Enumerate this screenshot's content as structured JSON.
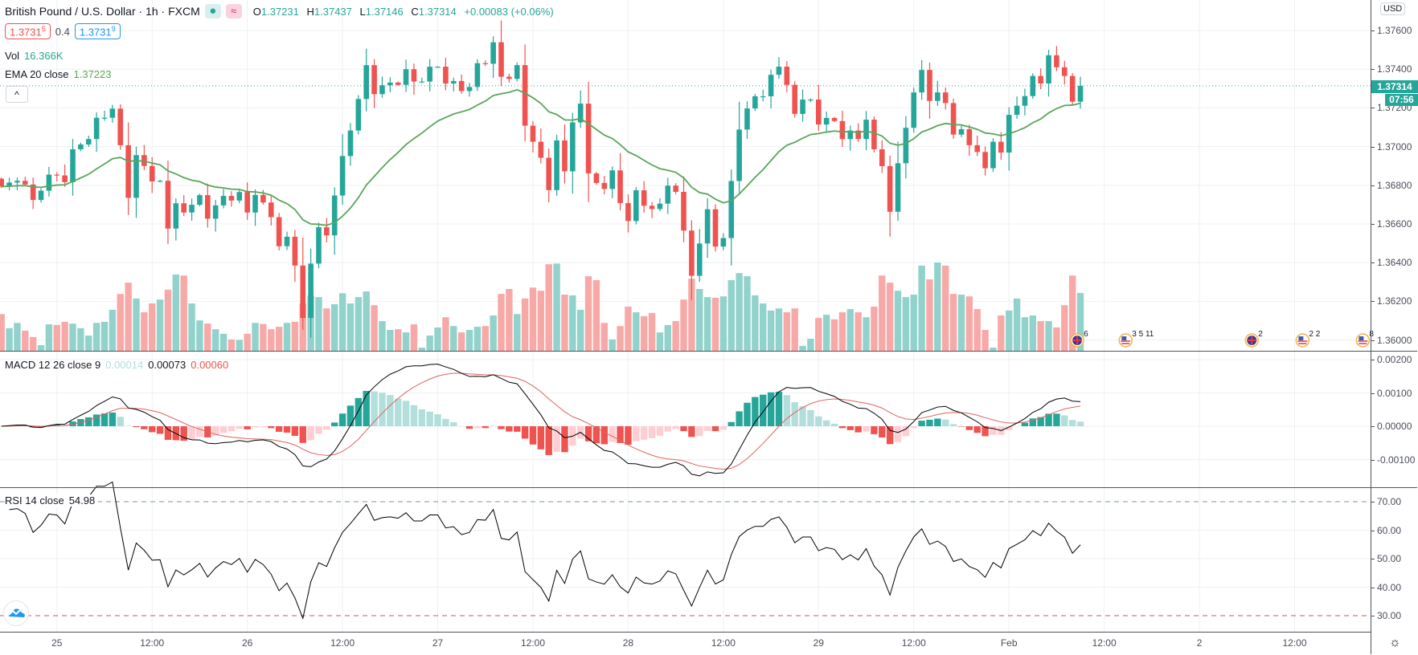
{
  "header": {
    "symbol": "British Pound / U.S. Dollar · 1h · FXCM",
    "o_label": "O",
    "o": "1.37231",
    "h_label": "H",
    "h": "1.37437",
    "l_label": "L",
    "l": "1.37146",
    "c_label": "C",
    "c": "1.37314",
    "change": "+0.00083 (+0.06%)",
    "market_status_icon": "dot-icon",
    "wave_icon": "≈"
  },
  "quotes": {
    "bid": "1.3731",
    "bid_sup": "5",
    "spread": "0.4",
    "ask": "1.3731",
    "ask_sup": "9"
  },
  "legends": {
    "vol_label": "Vol",
    "vol_value": "16.366K",
    "ema_label": "EMA 20 close",
    "ema_value": "1.37223",
    "macd_label": "MACD 12 26 close 9",
    "macd_hist": "0.00014",
    "macd_value": "0.00073",
    "macd_signal": "0.00060",
    "rsi_label": "RSI 14 close",
    "rsi_value": "54.98"
  },
  "axis": {
    "currency": "USD",
    "price_ticks": [
      "1.37600",
      "1.37400",
      "1.37200",
      "1.37000",
      "1.36800",
      "1.36600",
      "1.36400",
      "1.36200",
      "1.36000"
    ],
    "macd_ticks": [
      "0.00200",
      "0.00100",
      "0.00000",
      "-0.00100"
    ],
    "rsi_ticks": [
      "70.00",
      "60.00",
      "50.00",
      "40.00",
      "30.00"
    ],
    "last_price": "1.37314",
    "countdown": "07:56"
  },
  "time_axis": {
    "labels": [
      "25",
      "12:00",
      "26",
      "12:00",
      "27",
      "12:00",
      "28",
      "12:00",
      "29",
      "12:00",
      "Feb",
      "12:00",
      "2",
      "12:00"
    ],
    "first_label_bar": 7,
    "bars_per_label": 12
  },
  "colors": {
    "up": "#26a69a",
    "down": "#ef5350",
    "ema": "#5aa55a",
    "macd": "#000000",
    "signal": "#e0635f"
  },
  "events": [
    {
      "country": "uk",
      "bar": 135.6,
      "counts": "6"
    },
    {
      "country": "us",
      "bar": 141.7,
      "counts": "3 5 11"
    },
    {
      "country": "uk",
      "bar": 157.6,
      "counts": "2"
    },
    {
      "country": "us",
      "bar": 164,
      "counts": "2 2"
    },
    {
      "country": "us",
      "bar": 171.6,
      "counts": "8"
    }
  ],
  "chart_data": {
    "type": "candlestick",
    "first_open": 1.36834,
    "close": [
      1.36793,
      1.36814,
      1.36823,
      1.36804,
      1.36724,
      1.36772,
      1.36855,
      1.36851,
      1.36816,
      1.36986,
      1.37011,
      1.37039,
      1.37149,
      1.37149,
      1.37196,
      1.37007,
      1.36735,
      1.36956,
      1.369,
      1.3682,
      1.36823,
      1.36576,
      1.36707,
      1.36659,
      1.36699,
      1.36749,
      1.36627,
      1.36696,
      1.36745,
      1.36721,
      1.36765,
      1.36659,
      1.3675,
      1.36711,
      1.36635,
      1.36485,
      1.36534,
      1.36385,
      1.36114,
      1.36395,
      1.36583,
      1.36541,
      1.36747,
      1.36951,
      1.37083,
      1.37246,
      1.37421,
      1.37271,
      1.37317,
      1.37331,
      1.37319,
      1.374,
      1.37336,
      1.37336,
      1.37413,
      1.37413,
      1.37326,
      1.37339,
      1.37287,
      1.37308,
      1.37431,
      1.37428,
      1.37539,
      1.37361,
      1.3735,
      1.37421,
      1.37108,
      1.37025,
      1.36942,
      1.36775,
      1.37032,
      1.36872,
      1.37125,
      1.37222,
      1.36861,
      1.36812,
      1.36781,
      1.36877,
      1.36708,
      1.36615,
      1.36774,
      1.36694,
      1.36677,
      1.36705,
      1.36798,
      1.36766,
      1.36566,
      1.36332,
      1.36499,
      1.36676,
      1.36483,
      1.36527,
      1.36822,
      1.37088,
      1.37197,
      1.3726,
      1.3726,
      1.37371,
      1.37413,
      1.37319,
      1.37169,
      1.37243,
      1.37243,
      1.37114,
      1.37148,
      1.37132,
      1.37039,
      1.37083,
      1.37039,
      1.37139,
      1.36986,
      1.36899,
      1.36663,
      1.36914,
      1.37097,
      1.3728,
      1.37396,
      1.37236,
      1.3728,
      1.37225,
      1.37062,
      1.3709,
      1.37007,
      1.36972,
      1.36888,
      1.37025,
      1.36969,
      1.37164,
      1.37211,
      1.37261,
      1.37365,
      1.37326,
      1.37472,
      1.3741,
      1.37365,
      1.37232,
      1.37314
    ],
    "volume_k": [
      10.4,
      6.4,
      7.9,
      5.7,
      3.9,
      1.6,
      7.5,
      7.3,
      8.2,
      7.7,
      6.4,
      4.3,
      7.9,
      8.2,
      11.6,
      16.1,
      19.3,
      14.8,
      10.9,
      13.4,
      14.5,
      17.3,
      21.6,
      21.3,
      13.4,
      8.6,
      7.7,
      6.1,
      4.8,
      3.2,
      3.1,
      4.8,
      7.9,
      7.6,
      6.1,
      6.8,
      7.9,
      8.2,
      13.4,
      15.6,
      15.2,
      12.0,
      13.2,
      16.3,
      13.4,
      15.2,
      16.8,
      12.9,
      8.4,
      5.9,
      6.1,
      5.2,
      7.5,
      0.9,
      4.3,
      6.6,
      9.5,
      7.0,
      5.2,
      5.9,
      6.8,
      7.0,
      10.0,
      16.1,
      17.5,
      10.4,
      14.8,
      17.9,
      17.0,
      24.5,
      24.7,
      15.9,
      15.7,
      11.6,
      21.1,
      20.0,
      7.9,
      3.2,
      7.0,
      12.5,
      10.9,
      9.8,
      10.7,
      5.2,
      7.3,
      8.4,
      14.5,
      20.4,
      17.5,
      15.2,
      15.0,
      15.4,
      20.0,
      22.0,
      21.1,
      15.7,
      13.4,
      11.4,
      12.0,
      10.9,
      12.0,
      1.4,
      3.4,
      9.3,
      10.2,
      8.9,
      10.9,
      11.8,
      10.9,
      9.5,
      12.5,
      21.3,
      19.3,
      17.0,
      15.2,
      15.9,
      24.1,
      20.2,
      25.0,
      24.1,
      16.1,
      15.9,
      15.4,
      11.8,
      5.9,
      0.9,
      10.0,
      11.4,
      14.8,
      9.5,
      10.0,
      8.4,
      8.4,
      6.6,
      12.9,
      21.3,
      16.366
    ],
    "price_range": [
      1.3595,
      1.3775
    ],
    "indicators": {
      "ema_period": 20,
      "macd": [
        12,
        26,
        9
      ],
      "rsi_period": 14,
      "rsi_levels": [
        70,
        30
      ]
    }
  }
}
